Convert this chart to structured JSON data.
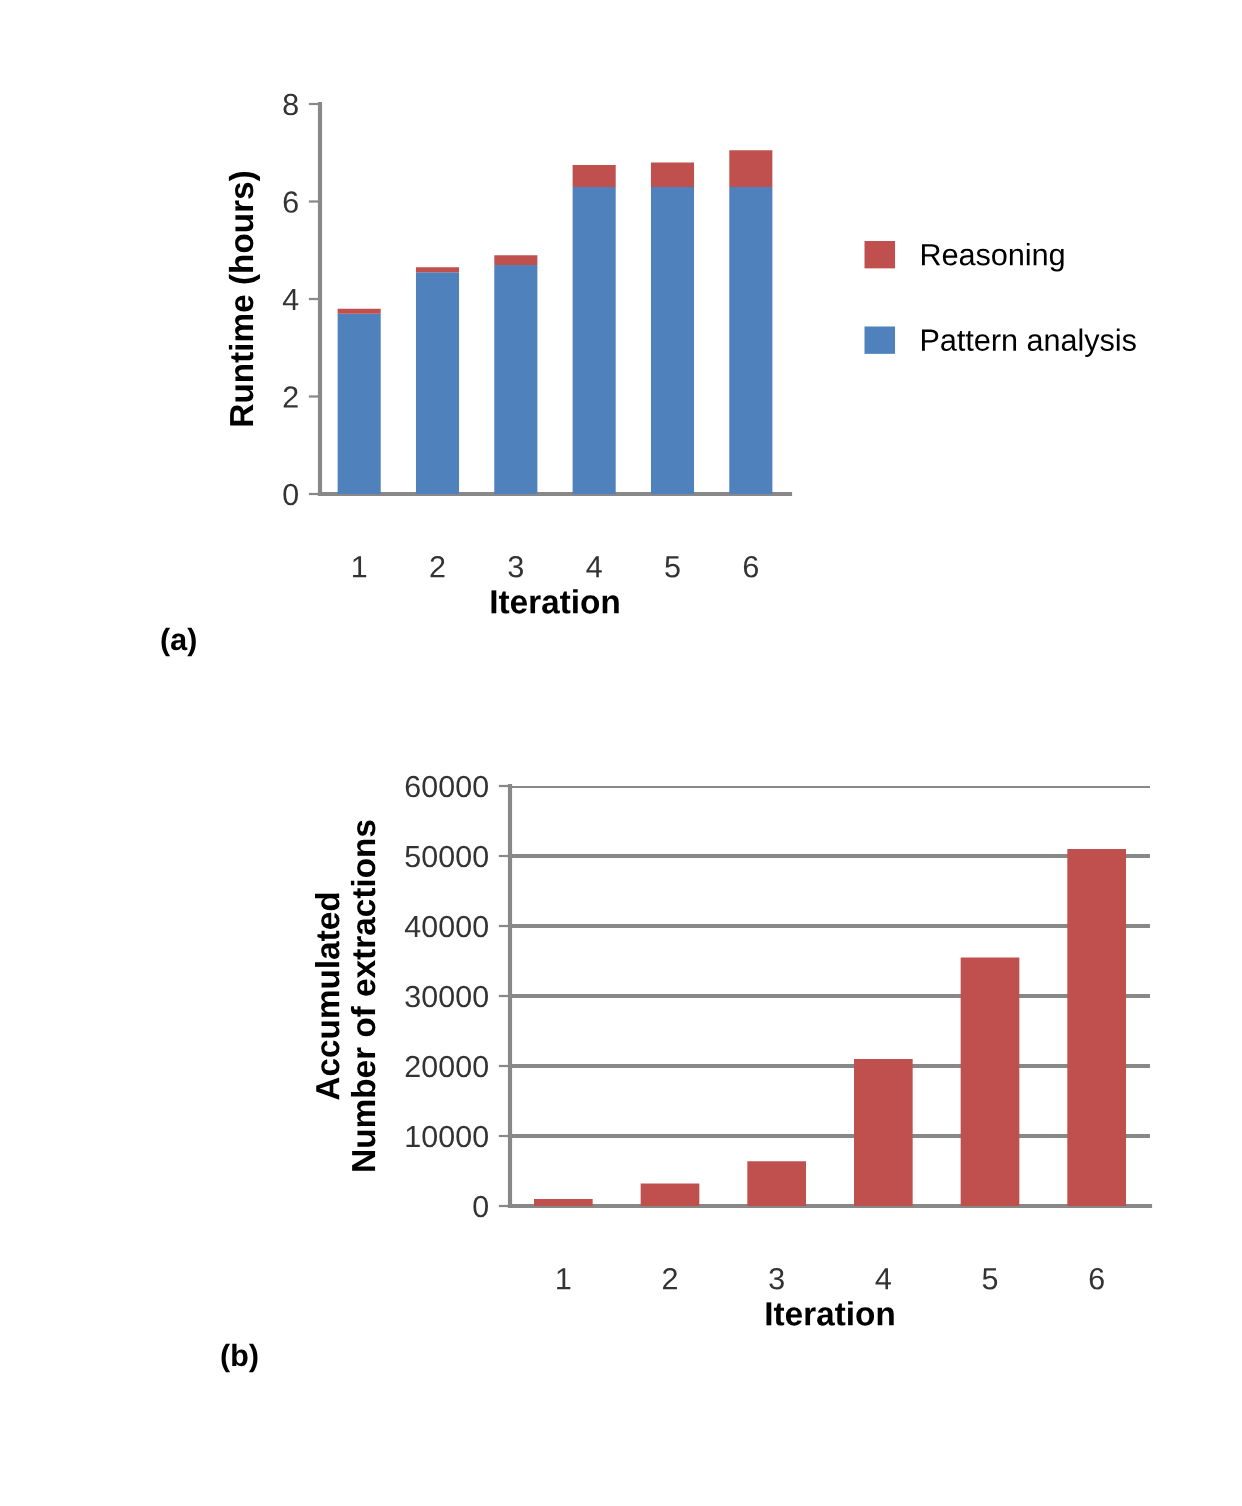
{
  "chart_data": [
    {
      "type": "bar",
      "stacked": true,
      "xlabel": "Iteration",
      "ylabel": "Runtime (hours)",
      "categories": [
        "1",
        "2",
        "3",
        "4",
        "5",
        "6"
      ],
      "series": [
        {
          "name": "Pattern analysis",
          "color": "#4f81bd",
          "values": [
            3.7,
            4.55,
            4.7,
            6.3,
            6.3,
            6.3
          ]
        },
        {
          "name": "Reasoning",
          "color": "#c0504d",
          "values": [
            0.1,
            0.1,
            0.2,
            0.45,
            0.5,
            0.75
          ]
        }
      ],
      "ylim": [
        0,
        8
      ],
      "yticks": [
        0,
        2,
        4,
        6,
        8
      ],
      "grid": false,
      "legend": "right",
      "annotations": [
        "(a)"
      ]
    },
    {
      "type": "bar",
      "xlabel": "Iteration",
      "ylabel": "Accumulated\nNumber of extractions",
      "categories": [
        "1",
        "2",
        "3",
        "4",
        "5",
        "6"
      ],
      "series": [
        {
          "color": "#c0504d",
          "values": [
            1000,
            3200,
            6400,
            21000,
            35500,
            51000
          ]
        }
      ],
      "ylim": [
        0,
        60000
      ],
      "yticks": [
        0,
        10000,
        20000,
        30000,
        40000,
        50000,
        60000
      ],
      "grid": "y",
      "annotations": [
        "(b)"
      ]
    }
  ]
}
